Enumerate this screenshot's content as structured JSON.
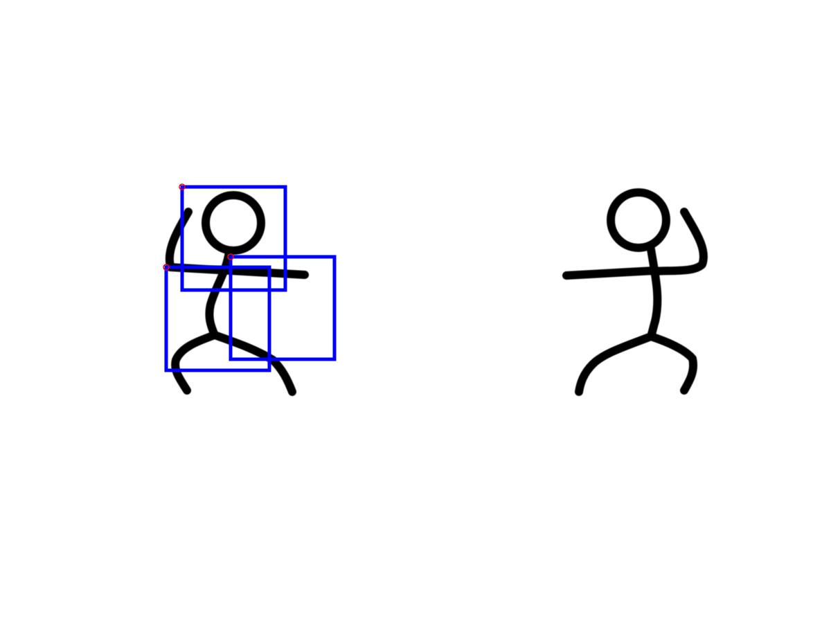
{
  "scene": {
    "background": "#ffffff",
    "figures": [
      {
        "id": "left",
        "pose": "dancing-arm-raised-left",
        "color": "#000000"
      },
      {
        "id": "right",
        "pose": "dancing-arm-raised-right",
        "color": "#000000"
      }
    ],
    "overlay": {
      "box_color": "#0000ff",
      "anchor_color": "#ff0000",
      "box_count": 3
    }
  }
}
